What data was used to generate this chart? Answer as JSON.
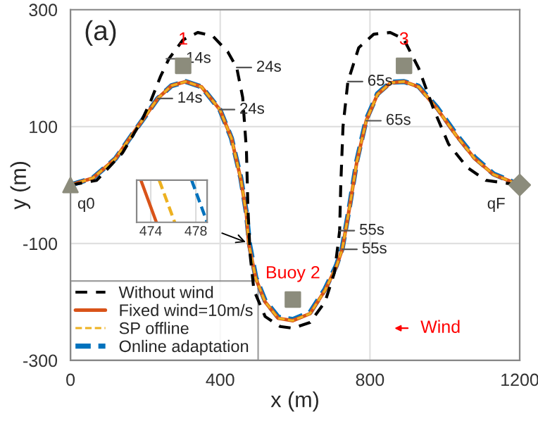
{
  "chart_data": {
    "type": "line",
    "title": "(a)",
    "xlabel": "x (m)",
    "ylabel": "y (m)",
    "xlim": [
      0,
      1200
    ],
    "ylim": [
      -300,
      300
    ],
    "xticks": [
      0,
      400,
      800,
      1200
    ],
    "yticks": [
      -300,
      -100,
      100,
      300
    ],
    "grid": true,
    "legend": "bottom left",
    "series": [
      {
        "name": "Without wind",
        "color": "#000000",
        "line_style": "dashed",
        "x": [
          0,
          70,
          139,
          190,
          214,
          240,
          263,
          300,
          340,
          380,
          420,
          444,
          460,
          470,
          474,
          480,
          490,
          520,
          560,
          594,
          640,
          680,
          705,
          715,
          719,
          722,
          728,
          741,
          770,
          810,
          854,
          890,
          930,
          970,
          1010,
          1060,
          1110,
          1200
        ],
        "values": [
          0,
          8,
          55,
          110,
          143,
          185,
          216,
          248,
          261,
          255,
          228,
          201,
          150,
          60,
          -40,
          -120,
          -180,
          -225,
          -242,
          -245,
          -235,
          -200,
          -150,
          -100,
          -78,
          0,
          100,
          177,
          235,
          258,
          261,
          250,
          200,
          130,
          70,
          30,
          8,
          0
        ]
      },
      {
        "name": "Fixed wind=10m/s",
        "color": "#d95319",
        "line_style": "solid",
        "x": [
          0,
          60,
          120,
          180,
          233,
          270,
          308,
          350,
          399,
          430,
          455,
          470,
          476,
          495,
          520,
          555,
          594,
          640,
          680,
          710,
          726,
          745,
          765,
          790,
          820,
          855,
          891,
          930,
          980,
          1030,
          1080,
          1130,
          1200
        ],
        "values": [
          0,
          12,
          45,
          100,
          148,
          170,
          177,
          168,
          129,
          80,
          10,
          -50,
          -100,
          -160,
          -200,
          -228,
          -232,
          -220,
          -180,
          -140,
          -110,
          -40,
          40,
          110,
          155,
          175,
          177,
          168,
          130,
          85,
          45,
          18,
          0
        ]
      },
      {
        "name": "SP offline",
        "color": "#edb120",
        "line_style": "dashed",
        "x": [
          0,
          60,
          120,
          180,
          233,
          270,
          308,
          350,
          399,
          430,
          455,
          470,
          476,
          495,
          520,
          555,
          594,
          640,
          680,
          710,
          726,
          745,
          765,
          790,
          820,
          855,
          891,
          930,
          980,
          1030,
          1080,
          1130,
          1200
        ],
        "values": [
          0,
          12,
          45,
          100,
          148,
          170,
          177,
          168,
          129,
          80,
          10,
          -50,
          -100,
          -160,
          -200,
          -228,
          -232,
          -220,
          -180,
          -140,
          -110,
          -40,
          40,
          110,
          155,
          175,
          177,
          168,
          130,
          85,
          45,
          18,
          0
        ]
      },
      {
        "name": "Online adaptation",
        "color": "#0072bd",
        "line_style": "dashed",
        "x": [
          0,
          60,
          120,
          180,
          233,
          270,
          308,
          350,
          399,
          430,
          455,
          470,
          478,
          495,
          520,
          555,
          594,
          640,
          680,
          710,
          726,
          745,
          765,
          790,
          820,
          855,
          891,
          930,
          980,
          1030,
          1080,
          1130,
          1200
        ],
        "values": [
          0,
          12,
          45,
          100,
          148,
          170,
          177,
          168,
          129,
          80,
          12,
          -48,
          -100,
          -158,
          -198,
          -226,
          -230,
          -218,
          -178,
          -138,
          -108,
          -38,
          42,
          112,
          156,
          176,
          177,
          169,
          132,
          87,
          47,
          19,
          0
        ]
      },
      {
        "type": "scatter",
        "color": "#8c8c7c",
        "marker": "square",
        "x": [
          301,
          594,
          891
        ],
        "values": [
          204,
          -196,
          204
        ]
      },
      {
        "type": "scatter",
        "color": "#8c8c7c",
        "marker": "triangle",
        "x": [
          0
        ],
        "values": [
          0
        ]
      },
      {
        "type": "scatter",
        "color": "#8c8c7c",
        "marker": "diamond",
        "x": [
          1200
        ],
        "values": [
          0
        ]
      }
    ],
    "annotations": [
      {
        "text": "14s",
        "x": 256,
        "y": 216
      },
      {
        "text": "24s",
        "x": 444,
        "y": 201
      },
      {
        "text": "14s",
        "x": 233,
        "y": 148
      },
      {
        "text": "24s",
        "x": 399,
        "y": 129
      },
      {
        "text": "65s",
        "x": 741,
        "y": 177
      },
      {
        "text": "65s",
        "x": 790,
        "y": 110
      },
      {
        "text": "55s",
        "x": 719,
        "y": -78
      },
      {
        "text": "55s",
        "x": 726,
        "y": -110
      },
      {
        "text": "q0",
        "x": 0,
        "y": 0
      },
      {
        "text": "qF",
        "x": 1200,
        "y": 0
      },
      {
        "text": "1",
        "x": 301,
        "y": 204
      },
      {
        "text": "Buoy 2",
        "x": 594,
        "y": -196
      },
      {
        "text": "3",
        "x": 891,
        "y": 204
      },
      "Wind",
      "474",
      "478"
    ]
  }
}
